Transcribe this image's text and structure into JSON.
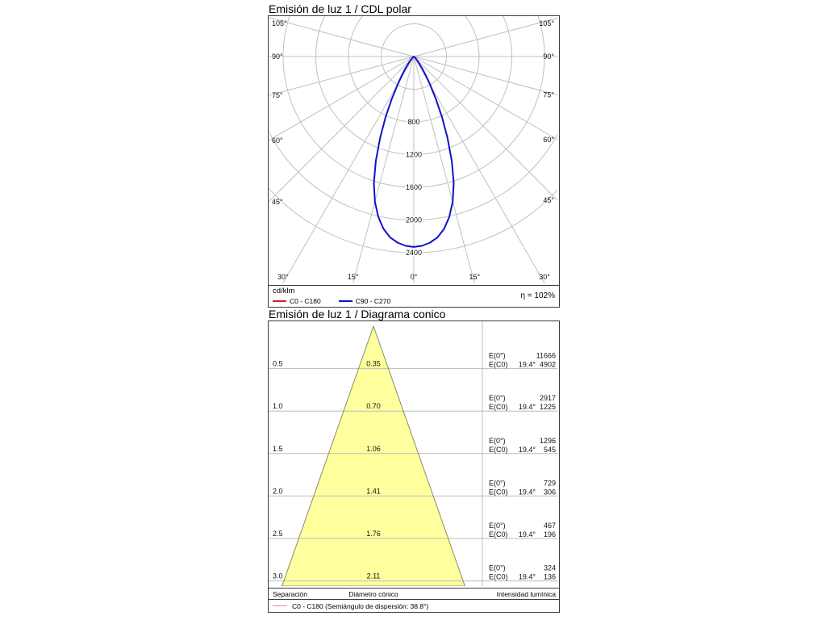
{
  "polar": {
    "title": "Emisión de luz 1 / CDL polar",
    "unit": "cd/klm",
    "eta": "η = 102%",
    "legend": [
      {
        "label": "C0 - C180",
        "color": "#cc2222"
      },
      {
        "label": "C90 - C270",
        "color": "#1111cc"
      }
    ]
  },
  "cone": {
    "title": "Emisión de luz 1 / Diagrama conico",
    "footer": {
      "separation": "Separación",
      "diameter": "Diámetro cónico",
      "intensity": "Intensidad lumínica"
    },
    "legend_label": "C0 - C180 (Semiángulo de dispersión: 38.8°)",
    "legend_color": "#f08585"
  },
  "chart_data": [
    {
      "type": "line",
      "subtype": "polar-intensity-curve",
      "title": "Emisión de luz 1 / CDL polar",
      "unit": "cd/klm",
      "efficiency": "η = 102%",
      "angle_ticks_deg": [
        0,
        15,
        30,
        45,
        60,
        75,
        90,
        105
      ],
      "radial_circles": [
        400,
        800,
        1200,
        1600,
        2000,
        2400
      ],
      "radial_tick_labels": [
        "800",
        "1200",
        "1600",
        "2000",
        "2400"
      ],
      "grid_color": "#c0c0c0",
      "series": [
        {
          "name": "C0 - C180",
          "color": "#cc2222"
        },
        {
          "name": "C90 - C270",
          "color": "#1111cc",
          "symmetric": true,
          "points_deg_cdklm": [
            [
              0,
              2330
            ],
            [
              2.5,
              2318
            ],
            [
              5,
              2285
            ],
            [
              7.5,
              2230
            ],
            [
              10,
              2140
            ],
            [
              12.5,
              2010
            ],
            [
              15,
              1840
            ],
            [
              17.5,
              1625
            ],
            [
              20,
              1360
            ],
            [
              22.5,
              1080
            ],
            [
              25,
              815
            ],
            [
              27.5,
              585
            ],
            [
              30,
              400
            ],
            [
              32.5,
              270
            ],
            [
              35,
              185
            ],
            [
              40,
              82
            ],
            [
              45,
              34
            ],
            [
              50,
              13
            ],
            [
              55,
              5
            ],
            [
              60,
              0
            ]
          ]
        }
      ]
    },
    {
      "type": "table",
      "subtype": "cone-diagram",
      "title": "Emisión de luz 1 / Diagrama conico",
      "beam_half_angle_deg": 19.4,
      "dispersion_semiangle_deg": 38.8,
      "col_labels": {
        "e0": "E(0°)",
        "ec0": "E(C0)",
        "angle": "19.4°"
      },
      "rows": [
        {
          "separation": "0.5",
          "diameter": "0.35",
          "e0": "11666",
          "ec0": "4902"
        },
        {
          "separation": "1.0",
          "diameter": "0.70",
          "e0": "2917",
          "ec0": "1225"
        },
        {
          "separation": "1.5",
          "diameter": "1.06",
          "e0": "1296",
          "ec0": "545"
        },
        {
          "separation": "2.0",
          "diameter": "1.41",
          "e0": "729",
          "ec0": "306"
        },
        {
          "separation": "2.5",
          "diameter": "1.76",
          "e0": "467",
          "ec0": "196"
        },
        {
          "separation": "3.0",
          "diameter": "2.11",
          "e0": "324",
          "ec0": "136"
        }
      ],
      "cone_fill": "#ffff9e",
      "grid_color": "#bcbcbc"
    }
  ]
}
